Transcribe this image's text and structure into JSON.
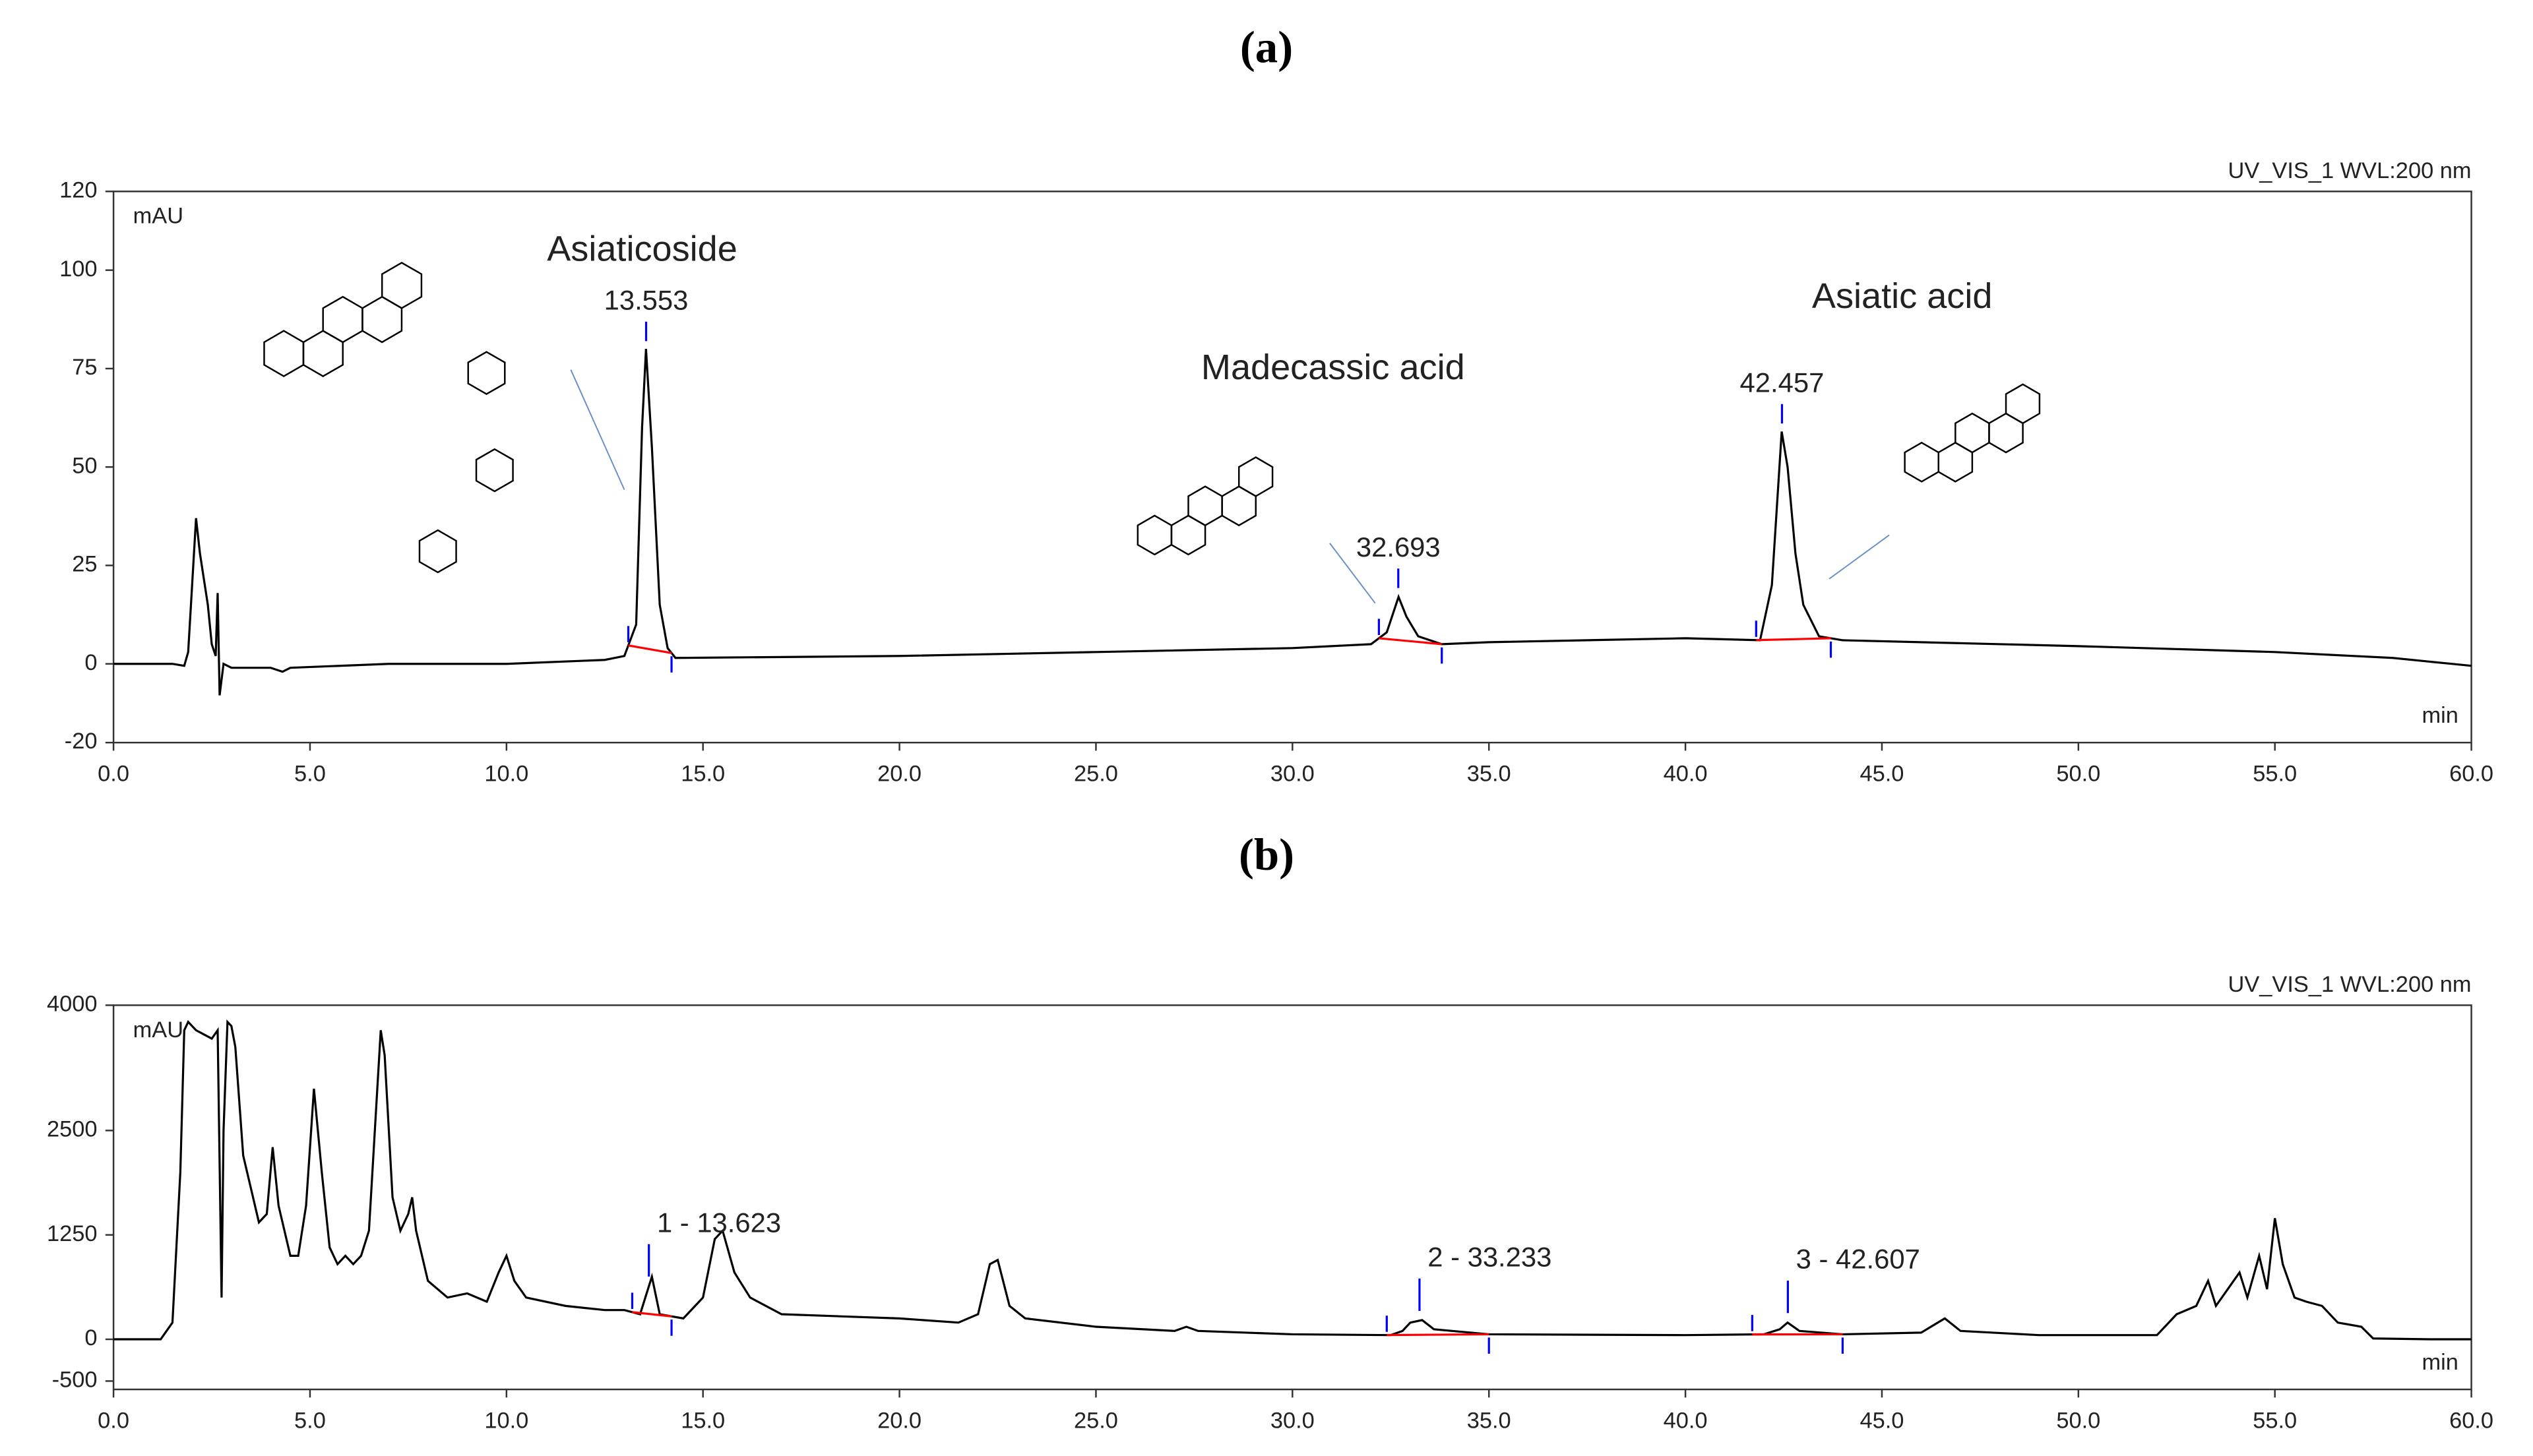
{
  "chart_data": [
    {
      "type": "line",
      "panel_label": "(a)",
      "header": "UV_VIS_1 WVL:200 nm",
      "ylabel": "mAU",
      "xlabel": "min",
      "color": "#000000",
      "baseline_color": "#ff0000",
      "marker_color": "#0000ff",
      "x": [
        0,
        1.5,
        1.8,
        1.9,
        2.0,
        2.1,
        2.2,
        2.4,
        2.5,
        2.6,
        2.65,
        2.7,
        2.8,
        3.0,
        4.0,
        4.3,
        4.5,
        7,
        10,
        12.5,
        13.0,
        13.3,
        13.45,
        13.55,
        13.7,
        13.9,
        14.1,
        14.3,
        20,
        25,
        30,
        32.0,
        32.4,
        32.7,
        32.9,
        33.2,
        33.8,
        35,
        40,
        41.9,
        42.2,
        42.45,
        42.6,
        42.8,
        43.0,
        43.4,
        44,
        50,
        55,
        58,
        59.5,
        60
      ],
      "values": [
        0,
        0,
        -0.5,
        3,
        20,
        37,
        28,
        15,
        5,
        2,
        18,
        -8,
        0,
        -1,
        -1,
        -2,
        -1,
        0,
        0,
        1,
        2,
        10,
        60,
        80,
        55,
        15,
        4,
        1.5,
        2,
        3,
        4,
        5,
        8,
        17,
        12,
        7,
        5,
        5.5,
        6.5,
        6,
        20,
        59,
        50,
        28,
        15,
        7,
        6,
        4.5,
        3,
        1.5,
        0,
        -0.5
      ],
      "peaks": [
        {
          "x": 13.553,
          "label": "13.553",
          "start": 13.1,
          "end": 14.2,
          "name": "Asiaticoside"
        },
        {
          "x": 32.693,
          "label": "32.693",
          "start": 32.2,
          "end": 33.8,
          "name": "Madecassic acid"
        },
        {
          "x": 42.457,
          "label": "42.457",
          "start": 41.8,
          "end": 43.7,
          "name": "Asiatic acid"
        }
      ],
      "xlim": [
        0,
        60
      ],
      "ylim": [
        -20,
        120
      ],
      "xticks": [
        {
          "value": 0,
          "label": "0.0"
        },
        {
          "value": 5,
          "label": "5.0"
        },
        {
          "value": 10,
          "label": "10.0"
        },
        {
          "value": 15,
          "label": "15.0"
        },
        {
          "value": 20,
          "label": "20.0"
        },
        {
          "value": 25,
          "label": "25.0"
        },
        {
          "value": 30,
          "label": "30.0"
        },
        {
          "value": 35,
          "label": "35.0"
        },
        {
          "value": 40,
          "label": "40.0"
        },
        {
          "value": 45,
          "label": "45.0"
        },
        {
          "value": 50,
          "label": "50.0"
        },
        {
          "value": 55,
          "label": "55.0"
        },
        {
          "value": 60,
          "label": "60.0"
        }
      ],
      "yticks": [
        -20,
        0,
        25,
        50,
        75,
        100,
        120
      ]
    },
    {
      "type": "line",
      "panel_label": "(b)",
      "header": "UV_VIS_1 WVL:200 nm",
      "ylabel": "mAU",
      "xlabel": "min",
      "color": "#000000",
      "baseline_color": "#ff0000",
      "marker_color": "#0000ff",
      "x": [
        0,
        1.2,
        1.5,
        1.7,
        1.8,
        1.9,
        2.1,
        2.3,
        2.5,
        2.65,
        2.75,
        2.8,
        2.9,
        3.0,
        3.1,
        3.3,
        3.5,
        3.7,
        3.9,
        4.05,
        4.2,
        4.5,
        4.7,
        4.9,
        5.1,
        5.3,
        5.5,
        5.7,
        5.9,
        6.1,
        6.3,
        6.5,
        6.65,
        6.8,
        6.9,
        7.1,
        7.3,
        7.5,
        7.6,
        7.7,
        8.0,
        8.5,
        9.0,
        9.5,
        9.8,
        10.0,
        10.2,
        10.5,
        11.5,
        12.5,
        13.0,
        13.4,
        13.6,
        13.7,
        13.9,
        14.5,
        15.0,
        15.3,
        15.5,
        15.8,
        16.2,
        17,
        20,
        21.5,
        22.0,
        22.3,
        22.5,
        22.8,
        23.2,
        25,
        27,
        27.3,
        27.6,
        30,
        32.5,
        32.8,
        33.0,
        33.3,
        33.6,
        35,
        40,
        42,
        42.4,
        42.6,
        42.9,
        44,
        46,
        46.6,
        47.0,
        49,
        52,
        52.5,
        53.0,
        53.3,
        53.5,
        53.8,
        54.1,
        54.3,
        54.6,
        54.8,
        55.0,
        55.2,
        55.5,
        55.8,
        56.2,
        56.6,
        57.2,
        57.5,
        59,
        60
      ],
      "values": [
        0,
        0,
        200,
        2000,
        3700,
        3800,
        3700,
        3650,
        3600,
        3700,
        500,
        2500,
        3800,
        3750,
        3500,
        2200,
        1800,
        1400,
        1500,
        2300,
        1600,
        1000,
        1000,
        1600,
        3000,
        2000,
        1100,
        900,
        1000,
        900,
        1000,
        1300,
        2500,
        3700,
        3400,
        1700,
        1300,
        1500,
        1700,
        1300,
        700,
        500,
        550,
        450,
        800,
        1000,
        700,
        500,
        400,
        350,
        350,
        300,
        600,
        750,
        300,
        250,
        500,
        1200,
        1300,
        800,
        500,
        300,
        250,
        200,
        300,
        900,
        950,
        400,
        250,
        150,
        100,
        150,
        100,
        60,
        50,
        100,
        200,
        230,
        120,
        60,
        50,
        60,
        120,
        200,
        100,
        60,
        80,
        250,
        100,
        50,
        50,
        300,
        400,
        700,
        400,
        600,
        800,
        500,
        1000,
        600,
        1450,
        900,
        500,
        450,
        400,
        200,
        150,
        10,
        0,
        0
      ],
      "peaks": [
        {
          "x": 13.623,
          "label": "1 - 13.623",
          "start": 13.2,
          "end": 14.2
        },
        {
          "x": 33.233,
          "label": "2 - 33.233",
          "start": 32.4,
          "end": 35.0
        },
        {
          "x": 42.607,
          "label": "3 - 42.607",
          "start": 41.7,
          "end": 44.0
        }
      ],
      "xlim": [
        0,
        60
      ],
      "ylim": [
        -600,
        4000
      ],
      "xticks": [
        {
          "value": 0,
          "label": "0.0"
        },
        {
          "value": 5,
          "label": "5.0"
        },
        {
          "value": 10,
          "label": "10.0"
        },
        {
          "value": 15,
          "label": "15.0"
        },
        {
          "value": 20,
          "label": "20.0"
        },
        {
          "value": 25,
          "label": "25.0"
        },
        {
          "value": 30,
          "label": "30.0"
        },
        {
          "value": 35,
          "label": "35.0"
        },
        {
          "value": 40,
          "label": "40.0"
        },
        {
          "value": 45,
          "label": "45.0"
        },
        {
          "value": 50,
          "label": "50.0"
        },
        {
          "value": 55,
          "label": "55.0"
        },
        {
          "value": 60,
          "label": "60.0"
        }
      ],
      "yticks": [
        -500,
        0,
        1250,
        2500,
        4000
      ]
    }
  ]
}
